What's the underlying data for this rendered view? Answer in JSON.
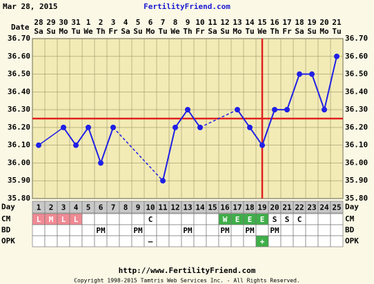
{
  "chart_data": {
    "type": "line",
    "date_stamp": "Mar 28, 2015",
    "site": "FertilityFriend.com",
    "date_label": "Date",
    "dates": [
      "28",
      "29",
      "30",
      "31",
      "1",
      "2",
      "3",
      "4",
      "5",
      "6",
      "7",
      "8",
      "9",
      "10",
      "11",
      "12",
      "13",
      "14",
      "15",
      "16",
      "17",
      "18",
      "19",
      "20",
      "21"
    ],
    "weekdays": [
      "Sa",
      "Su",
      "Mo",
      "Tu",
      "We",
      "Th",
      "Fr",
      "Sa",
      "Su",
      "Mo",
      "Tu",
      "We",
      "Th",
      "Fr",
      "Sa",
      "Su",
      "Mo",
      "Tu",
      "We",
      "Th",
      "Fr",
      "Sa",
      "Su",
      "Mo",
      "Tu"
    ],
    "series": [
      {
        "name": "Temperature",
        "color": "#1f1fe6",
        "values": [
          36.1,
          null,
          36.2,
          36.1,
          36.2,
          36.0,
          36.2,
          null,
          null,
          null,
          35.9,
          36.2,
          36.3,
          36.2,
          null,
          null,
          36.3,
          36.2,
          36.1,
          36.3,
          36.3,
          36.5,
          36.5,
          36.3,
          36.6
        ]
      }
    ],
    "ylim": [
      35.8,
      36.7
    ],
    "yticks": [
      {
        "value": 35.8,
        "label": "35.80"
      },
      {
        "value": 35.9,
        "label": "35.90"
      },
      {
        "value": 36.0,
        "label": "36.00"
      },
      {
        "value": 36.1,
        "label": "36.10"
      },
      {
        "value": 36.2,
        "label": "36.20"
      },
      {
        "value": 36.3,
        "label": "36.30"
      },
      {
        "value": 36.4,
        "label": "36.40"
      },
      {
        "value": 36.5,
        "label": "36.50"
      },
      {
        "value": 36.6,
        "label": "36.60"
      },
      {
        "value": 36.7,
        "label": "36.70"
      }
    ],
    "grid": true,
    "coverline": 36.25,
    "ovulation_day": 19,
    "marker_color": "#e02020",
    "row_labels": {
      "day": "Day",
      "cm": "CM",
      "bd": "BD",
      "opk": "OPK"
    },
    "cycle_days": [
      1,
      2,
      3,
      4,
      5,
      6,
      7,
      8,
      9,
      10,
      11,
      12,
      13,
      14,
      15,
      16,
      17,
      18,
      19,
      20,
      21,
      22,
      23,
      24,
      25
    ],
    "cm": [
      "L",
      "M",
      "L",
      "L",
      null,
      null,
      null,
      null,
      null,
      "C",
      null,
      null,
      null,
      null,
      null,
      "W",
      "E",
      "E",
      "E",
      "S",
      "S",
      "C",
      null,
      null,
      null
    ],
    "cm_colors": [
      "#f08a94",
      "#f08a94",
      "#f08a94",
      "#f08a94",
      null,
      null,
      null,
      null,
      null,
      null,
      null,
      null,
      null,
      null,
      null,
      "#3fae49",
      "#3fae49",
      "#3fae49",
      "#3fae49",
      null,
      null,
      null,
      null,
      null,
      null
    ],
    "bd": [
      null,
      null,
      null,
      null,
      null,
      "PM",
      null,
      null,
      "PM",
      null,
      null,
      null,
      "PM",
      null,
      null,
      "PM",
      null,
      "PM",
      null,
      "PM",
      null,
      null,
      null,
      null,
      null
    ],
    "opk": [
      null,
      null,
      null,
      null,
      null,
      null,
      null,
      null,
      null,
      "–",
      null,
      null,
      null,
      null,
      null,
      null,
      null,
      null,
      "+",
      null,
      null,
      null,
      null,
      null,
      null
    ],
    "opk_colors": [
      null,
      null,
      null,
      null,
      null,
      null,
      null,
      null,
      null,
      null,
      null,
      null,
      null,
      null,
      null,
      null,
      null,
      null,
      "#3fae49",
      null,
      null,
      null,
      null,
      null,
      null
    ],
    "url": "http://www.FertilityFriend.com",
    "copyright": "Copyright 1998-2015 Tamtris Web Services Inc. - All Rights Reserved."
  }
}
